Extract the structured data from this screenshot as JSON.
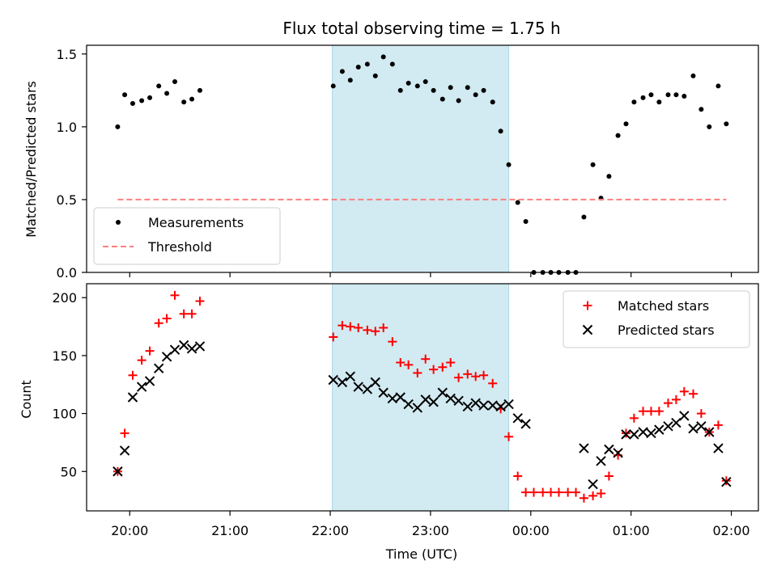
{
  "chart_data": {
    "title": "Flux total observing time = 1.75 h",
    "xlabel": "Time (UTC)",
    "x_unit": "hours since 20:00 UTC",
    "x_ticks": [
      {
        "value": 0,
        "label": "20:00"
      },
      {
        "value": 1,
        "label": "21:00"
      },
      {
        "value": 2,
        "label": "22:00"
      },
      {
        "value": 3,
        "label": "23:00"
      },
      {
        "value": 4,
        "label": "00:00"
      },
      {
        "value": 5,
        "label": "01:00"
      },
      {
        "value": 6,
        "label": "02:00"
      }
    ],
    "xlim": [
      -0.43,
      6.27
    ],
    "highlight_span": {
      "x0": 2.02,
      "x1": 3.78,
      "color": "#add8e6"
    },
    "panels": [
      {
        "type": "scatter",
        "ylabel": "Matched/Predicted stars",
        "ylim": [
          0,
          1.56
        ],
        "y_ticks": [
          {
            "value": 0.0,
            "label": "0.0"
          },
          {
            "value": 0.5,
            "label": "0.5"
          },
          {
            "value": 1.0,
            "label": "1.0"
          },
          {
            "value": 1.5,
            "label": "1.5"
          }
        ],
        "legend_position": "lower-left",
        "series": [
          {
            "name": "Measurements",
            "marker": "dot",
            "color": "#000000",
            "points": [
              [
                -0.12,
                1.0
              ],
              [
                -0.05,
                1.22
              ],
              [
                0.03,
                1.16
              ],
              [
                0.12,
                1.18
              ],
              [
                0.2,
                1.2
              ],
              [
                0.29,
                1.28
              ],
              [
                0.37,
                1.23
              ],
              [
                0.45,
                1.31
              ],
              [
                0.54,
                1.17
              ],
              [
                0.62,
                1.19
              ],
              [
                0.7,
                1.25
              ],
              [
                2.03,
                1.28
              ],
              [
                2.12,
                1.38
              ],
              [
                2.2,
                1.32
              ],
              [
                2.28,
                1.41
              ],
              [
                2.37,
                1.43
              ],
              [
                2.45,
                1.35
              ],
              [
                2.53,
                1.48
              ],
              [
                2.62,
                1.43
              ],
              [
                2.7,
                1.25
              ],
              [
                2.78,
                1.3
              ],
              [
                2.87,
                1.28
              ],
              [
                2.95,
                1.31
              ],
              [
                3.03,
                1.25
              ],
              [
                3.12,
                1.19
              ],
              [
                3.2,
                1.27
              ],
              [
                3.28,
                1.18
              ],
              [
                3.37,
                1.27
              ],
              [
                3.45,
                1.22
              ],
              [
                3.53,
                1.25
              ],
              [
                3.62,
                1.17
              ],
              [
                3.7,
                0.97
              ],
              [
                3.78,
                0.74
              ],
              [
                3.87,
                0.48
              ],
              [
                3.95,
                0.35
              ],
              [
                4.03,
                0.0
              ],
              [
                4.12,
                0.0
              ],
              [
                4.2,
                0.0
              ],
              [
                4.28,
                0.0
              ],
              [
                4.37,
                0.0
              ],
              [
                4.45,
                0.0
              ],
              [
                4.53,
                0.38
              ],
              [
                4.62,
                0.74
              ],
              [
                4.7,
                0.51
              ],
              [
                4.78,
                0.66
              ],
              [
                4.87,
                0.94
              ],
              [
                4.95,
                1.02
              ],
              [
                5.03,
                1.17
              ],
              [
                5.12,
                1.2
              ],
              [
                5.2,
                1.22
              ],
              [
                5.28,
                1.17
              ],
              [
                5.37,
                1.22
              ],
              [
                5.45,
                1.22
              ],
              [
                5.53,
                1.21
              ],
              [
                5.62,
                1.35
              ],
              [
                5.7,
                1.12
              ],
              [
                5.78,
                1.0
              ],
              [
                5.87,
                1.28
              ],
              [
                5.95,
                1.02
              ]
            ]
          },
          {
            "name": "Threshold",
            "marker": "dashed-line",
            "color": "#ff7f7f",
            "points": [
              [
                -0.12,
                0.5
              ],
              [
                5.95,
                0.5
              ]
            ]
          }
        ]
      },
      {
        "type": "scatter",
        "ylabel": "Count",
        "ylim": [
          16,
          212
        ],
        "y_ticks": [
          {
            "value": 50,
            "label": "50"
          },
          {
            "value": 100,
            "label": "100"
          },
          {
            "value": 150,
            "label": "150"
          },
          {
            "value": 200,
            "label": "200"
          }
        ],
        "legend_position": "upper-right",
        "series": [
          {
            "name": "Matched stars",
            "marker": "plus",
            "color": "#ff0000",
            "points": [
              [
                -0.12,
                50
              ],
              [
                -0.05,
                83
              ],
              [
                0.03,
                133
              ],
              [
                0.12,
                146
              ],
              [
                0.2,
                154
              ],
              [
                0.29,
                178
              ],
              [
                0.37,
                182
              ],
              [
                0.45,
                202
              ],
              [
                0.54,
                186
              ],
              [
                0.62,
                186
              ],
              [
                0.7,
                197
              ],
              [
                2.03,
                166
              ],
              [
                2.12,
                176
              ],
              [
                2.2,
                175
              ],
              [
                2.28,
                174
              ],
              [
                2.37,
                172
              ],
              [
                2.45,
                171
              ],
              [
                2.53,
                174
              ],
              [
                2.62,
                162
              ],
              [
                2.7,
                144
              ],
              [
                2.78,
                142
              ],
              [
                2.87,
                135
              ],
              [
                2.95,
                147
              ],
              [
                3.03,
                138
              ],
              [
                3.12,
                140
              ],
              [
                3.2,
                144
              ],
              [
                3.28,
                131
              ],
              [
                3.37,
                134
              ],
              [
                3.45,
                132
              ],
              [
                3.53,
                133
              ],
              [
                3.62,
                126
              ],
              [
                3.7,
                104
              ],
              [
                3.78,
                80
              ],
              [
                3.87,
                46
              ],
              [
                3.95,
                32
              ],
              [
                4.03,
                32
              ],
              [
                4.12,
                32
              ],
              [
                4.2,
                32
              ],
              [
                4.28,
                32
              ],
              [
                4.37,
                32
              ],
              [
                4.45,
                32
              ],
              [
                4.53,
                27
              ],
              [
                4.62,
                29
              ],
              [
                4.7,
                31
              ],
              [
                4.78,
                46
              ],
              [
                4.87,
                64
              ],
              [
                4.95,
                83
              ],
              [
                5.03,
                96
              ],
              [
                5.12,
                102
              ],
              [
                5.2,
                102
              ],
              [
                5.28,
                102
              ],
              [
                5.37,
                109
              ],
              [
                5.45,
                112
              ],
              [
                5.53,
                119
              ],
              [
                5.62,
                117
              ],
              [
                5.7,
                100
              ],
              [
                5.78,
                84
              ],
              [
                5.87,
                90
              ],
              [
                5.95,
                42
              ]
            ]
          },
          {
            "name": "Predicted stars",
            "marker": "x",
            "color": "#000000",
            "points": [
              [
                -0.12,
                50
              ],
              [
                -0.05,
                68
              ],
              [
                0.03,
                114
              ],
              [
                0.12,
                123
              ],
              [
                0.2,
                128
              ],
              [
                0.29,
                139
              ],
              [
                0.37,
                149
              ],
              [
                0.45,
                155
              ],
              [
                0.54,
                159
              ],
              [
                0.62,
                156
              ],
              [
                0.7,
                158
              ],
              [
                2.03,
                129
              ],
              [
                2.12,
                127
              ],
              [
                2.2,
                132
              ],
              [
                2.28,
                123
              ],
              [
                2.37,
                121
              ],
              [
                2.45,
                127
              ],
              [
                2.53,
                118
              ],
              [
                2.62,
                113
              ],
              [
                2.7,
                114
              ],
              [
                2.78,
                108
              ],
              [
                2.87,
                105
              ],
              [
                2.95,
                112
              ],
              [
                3.03,
                110
              ],
              [
                3.12,
                118
              ],
              [
                3.2,
                113
              ],
              [
                3.28,
                111
              ],
              [
                3.37,
                106
              ],
              [
                3.45,
                109
              ],
              [
                3.53,
                107
              ],
              [
                3.62,
                107
              ],
              [
                3.7,
                106
              ],
              [
                3.78,
                108
              ],
              [
                3.87,
                96
              ],
              [
                3.95,
                91
              ],
              [
                4.53,
                70
              ],
              [
                4.62,
                39
              ],
              [
                4.7,
                59
              ],
              [
                4.78,
                69
              ],
              [
                4.87,
                66
              ],
              [
                4.95,
                82
              ],
              [
                5.03,
                82
              ],
              [
                5.12,
                84
              ],
              [
                5.2,
                83
              ],
              [
                5.28,
                86
              ],
              [
                5.37,
                89
              ],
              [
                5.45,
                92
              ],
              [
                5.53,
                98
              ],
              [
                5.62,
                87
              ],
              [
                5.7,
                89
              ],
              [
                5.78,
                84
              ],
              [
                5.87,
                70
              ],
              [
                5.95,
                41
              ]
            ]
          }
        ]
      }
    ]
  }
}
